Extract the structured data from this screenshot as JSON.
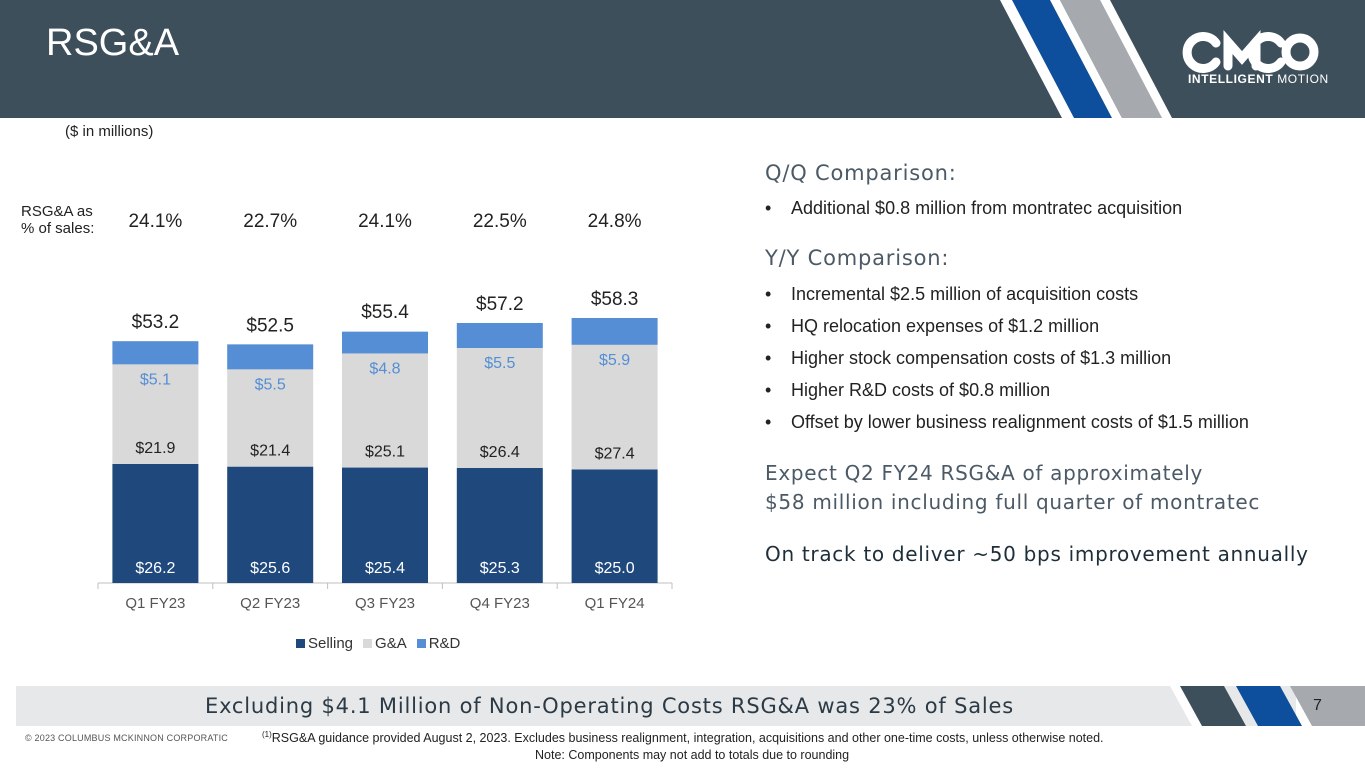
{
  "header": {
    "title": "RSG&A",
    "logo": {
      "wordmark": "CMCO",
      "tagline_bold": "INTELLIGENT",
      "tagline_light": "MOTION"
    }
  },
  "chart_note": "($ in millions)",
  "ratio_row": {
    "label_line1": "RSG&A as",
    "label_line2": "% of sales:",
    "values": [
      "24.1%",
      "22.7%",
      "24.1%",
      "22.5%",
      "24.8%"
    ]
  },
  "chart_data": {
    "type": "bar",
    "stacked": true,
    "categories": [
      "Q1 FY23",
      "Q2 FY23",
      "Q3 FY23",
      "Q4 FY23",
      "Q1 FY24"
    ],
    "series": [
      {
        "name": "Selling",
        "values": [
          26.2,
          25.6,
          25.4,
          25.3,
          25.0
        ],
        "labels": [
          "$26.2",
          "$25.6",
          "$25.4",
          "$25.3",
          "$25.0"
        ],
        "color": "#1f497d"
      },
      {
        "name": "G&A",
        "values": [
          21.9,
          21.4,
          25.1,
          26.4,
          27.4
        ],
        "labels": [
          "$21.9",
          "$21.4",
          "$25.1",
          "$26.4",
          "$27.4"
        ],
        "color": "#d9d9d9"
      },
      {
        "name": "R&D",
        "values": [
          5.1,
          5.5,
          4.8,
          5.5,
          5.9
        ],
        "labels": [
          "$5.1",
          "$5.5",
          "$4.8",
          "$5.5",
          "$5.9"
        ],
        "color": "#558ed5"
      }
    ],
    "totals": [
      53.2,
      52.5,
      55.4,
      57.2,
      58.3
    ],
    "total_labels": [
      "$53.2",
      "$52.5",
      "$55.4",
      "$57.2",
      "$58.3"
    ],
    "ylim": [
      0,
      58.3
    ],
    "grid": false,
    "legend_position": "bottom"
  },
  "right_panel": {
    "qq_heading": "Q/Q Comparison:",
    "qq_bullets": [
      "Additional $0.8 million from montratec acquisition"
    ],
    "yy_heading": "Y/Y Comparison:",
    "yy_bullets": [
      "Incremental $2.5 million of acquisition costs",
      "HQ relocation expenses of $1.2 million",
      "Higher stock compensation costs of $1.3 million",
      "Higher R&D costs of $0.8 million",
      "Offset by lower business realignment costs of $1.5 million"
    ],
    "bullet_char": "•",
    "expect_line1": "Expect Q2 FY24 RSG&A of approximately",
    "expect_line2": "$58 million including full quarter of montratec",
    "on_track": "On track to deliver ~50 bps improvement annually"
  },
  "banner": {
    "text": "Excluding $4.1 Million of Non-Operating Costs RSG&A was 23% of Sales",
    "page_number": "7"
  },
  "footer": {
    "copyright": "© 2023 COLUMBUS MCKINNON CORPORATIC",
    "footnote_mark": "(1)",
    "footnote": "RSG&A guidance provided August 2, 2023. Excludes business realignment, integration, acquisitions and other one-time costs, unless otherwise noted.",
    "note": "Note: Components may not add to totals due to rounding"
  },
  "colors": {
    "header_bg": "#3e4f5c",
    "stripe_blue": "#0d4f9c",
    "stripe_gray": "#a6aaae",
    "banner_bg": "#e7e8ea"
  }
}
